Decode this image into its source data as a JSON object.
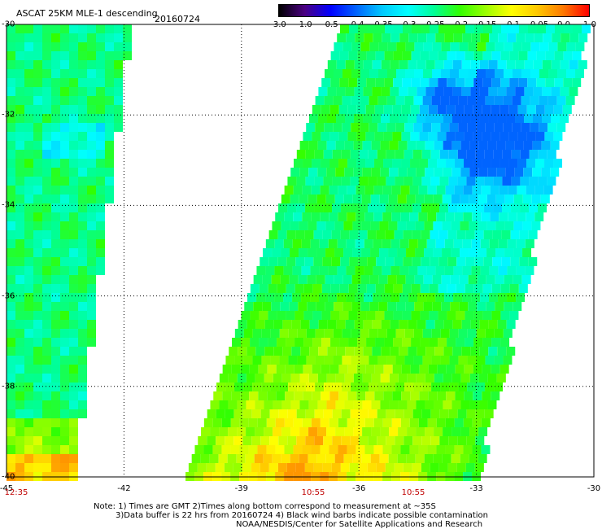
{
  "header": {
    "title": "ASCAT 25KM MLE-1 descending",
    "date": "20160724"
  },
  "colorbar": {
    "labels": [
      "-3.0",
      "-1.0",
      "-0.5",
      "-0.4",
      "-0.35",
      "-0.3",
      "-0.25",
      "-0.2",
      "-0.15",
      "-0.1",
      "-0.05",
      "0.0",
      "1.0"
    ],
    "colors": [
      "#000000",
      "#4b0082",
      "#0000ff",
      "#0064ff",
      "#00c8ff",
      "#00ffff",
      "#00ff96",
      "#32ff00",
      "#9bff00",
      "#ffff00",
      "#ffc800",
      "#ff7800",
      "#ff0000"
    ]
  },
  "map": {
    "lat_labels": [
      "-30",
      "-32",
      "-34",
      "-36",
      "-38",
      "-40"
    ],
    "lon_labels": [
      "-45",
      "-42",
      "-39",
      "-36",
      "-33",
      "-30"
    ],
    "time_labels": [
      "12:35",
      "10:55",
      "10:55"
    ],
    "lat_range": [
      -40,
      -30
    ],
    "lon_range": [
      -45,
      -30
    ]
  },
  "notes": {
    "line1": "Note: 1) Times are GMT 2)Times along bottom correspond to measurement at ~35S",
    "line2": "3)Data buffer is 22 hrs from 20160724 4) Black wind barbs indicate possible contamination",
    "line3": "NOAA/NESDIS/Center for Satellite Applications and Research"
  }
}
